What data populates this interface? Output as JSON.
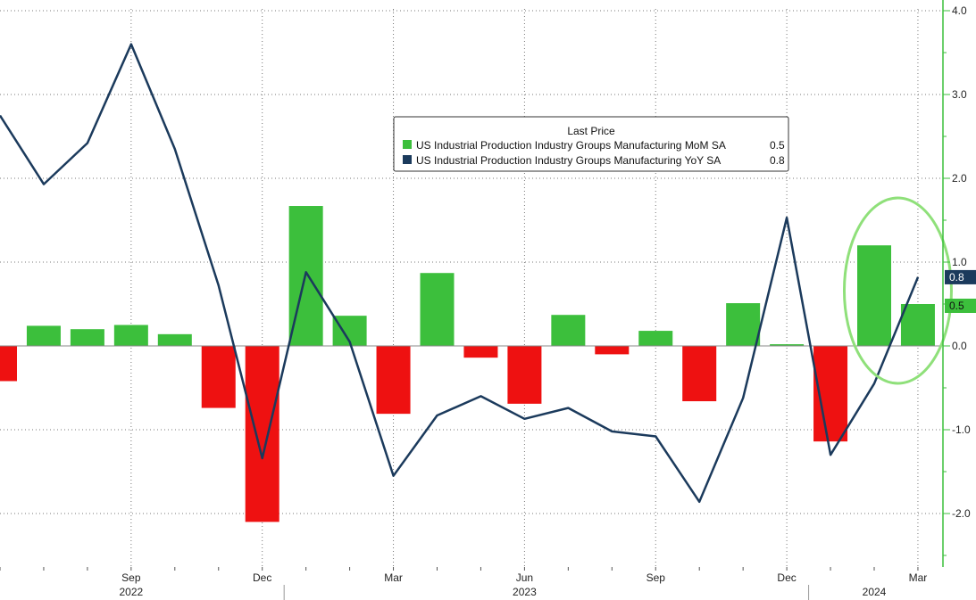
{
  "chart_data": {
    "type": "bar+line",
    "legend": {
      "title": "Last Price",
      "placement": "top-center",
      "entries": [
        {
          "label": "US Industrial Production Industry Groups Manufacturing MoM SA",
          "last": "0.5",
          "color": "#3cbf3c"
        },
        {
          "label": "US Industrial Production Industry Groups Manufacturing YoY SA",
          "last": "0.8",
          "color": "#1b3a5c"
        }
      ]
    },
    "colors": {
      "positive": "#3cbf3c",
      "negative": "#ee1111",
      "line": "#1b3a5c",
      "highlight": "#8fe07a",
      "axis": "#3cbf3c"
    },
    "ylim": [
      -2.6,
      4.0
    ],
    "y_ticks": [
      4.0,
      3.0,
      2.0,
      1.0,
      0.0,
      -1.0,
      -2.0
    ],
    "y_tick_labels": [
      "4.0",
      "3.0",
      "2.0",
      "1.0",
      "0.0",
      "-1.0",
      "-2.0"
    ],
    "x_tick_labels": [
      {
        "label": "Sep",
        "month_index": 3
      },
      {
        "label": "Dec",
        "month_index": 6
      },
      {
        "label": "Mar",
        "month_index": 9
      },
      {
        "label": "Jun",
        "month_index": 12
      },
      {
        "label": "Sep",
        "month_index": 15
      },
      {
        "label": "Dec",
        "month_index": 18
      },
      {
        "label": "Mar",
        "month_index": 21
      }
    ],
    "year_labels": [
      {
        "label": "2022",
        "month_index": 3
      },
      {
        "label": "2023",
        "month_index": 12
      },
      {
        "label": "2024",
        "month_index": 20
      }
    ],
    "months": [
      "2022-06",
      "2022-07",
      "2022-08",
      "2022-09",
      "2022-10",
      "2022-11",
      "2022-12",
      "2023-01",
      "2023-02",
      "2023-03",
      "2023-04",
      "2023-05",
      "2023-06",
      "2023-07",
      "2023-08",
      "2023-09",
      "2023-10",
      "2023-11",
      "2023-12",
      "2024-01",
      "2024-02",
      "2024-03"
    ],
    "mom_values": [
      -0.42,
      0.24,
      0.2,
      0.25,
      0.14,
      -0.74,
      -2.1,
      1.67,
      0.36,
      -0.81,
      0.87,
      -0.14,
      -0.69,
      0.37,
      -0.1,
      0.18,
      -0.66,
      0.51,
      0.02,
      -1.14,
      1.2,
      0.5
    ],
    "yoy_values": [
      2.75,
      1.93,
      2.42,
      3.6,
      2.35,
      0.72,
      -1.34,
      0.88,
      0.05,
      -1.55,
      -0.83,
      -0.6,
      -0.87,
      -0.74,
      -1.02,
      -1.08,
      -1.86,
      -0.62,
      1.53,
      -1.3,
      -0.45,
      0.82
    ],
    "end_labels": {
      "yoy": "0.8",
      "mom": "0.5"
    },
    "grid": true
  }
}
